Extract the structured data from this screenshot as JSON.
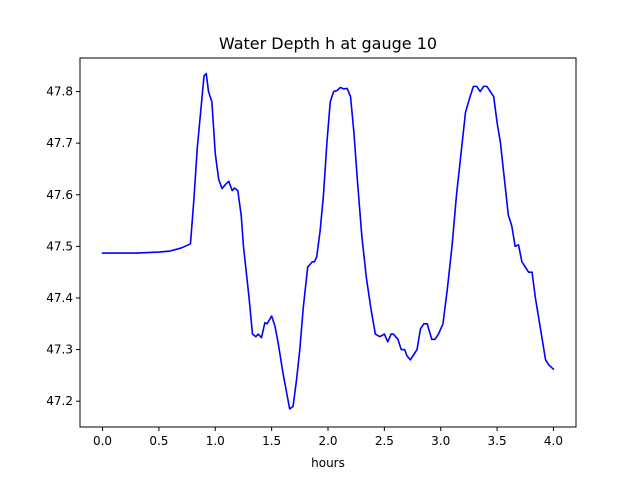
{
  "chart_data": {
    "type": "line",
    "title": "Water Depth h at gauge 10",
    "xlabel": "hours",
    "ylabel": "",
    "xlim": [
      -0.2,
      4.2
    ],
    "ylim": [
      47.15,
      47.865
    ],
    "x_ticks": [
      0.0,
      0.5,
      1.0,
      1.5,
      2.0,
      2.5,
      3.0,
      3.5,
      4.0
    ],
    "x_tick_labels": [
      "0.0",
      "0.5",
      "1.0",
      "1.5",
      "2.0",
      "2.5",
      "3.0",
      "3.5",
      "4.0"
    ],
    "y_ticks": [
      47.2,
      47.3,
      47.4,
      47.5,
      47.6,
      47.7,
      47.8
    ],
    "y_tick_labels": [
      "47.2",
      "47.3",
      "47.4",
      "47.5",
      "47.6",
      "47.7",
      "47.8"
    ],
    "grid": false,
    "series": [
      {
        "color": "#0000ff",
        "x": [
          0.0,
          0.3,
          0.5,
          0.6,
          0.7,
          0.78,
          0.81,
          0.84,
          0.87,
          0.9,
          0.92,
          0.94,
          0.97,
          1.0,
          1.03,
          1.06,
          1.09,
          1.12,
          1.15,
          1.17,
          1.2,
          1.23,
          1.25,
          1.27,
          1.3,
          1.33,
          1.36,
          1.38,
          1.41,
          1.44,
          1.46,
          1.5,
          1.53,
          1.56,
          1.6,
          1.63,
          1.66,
          1.69,
          1.72,
          1.75,
          1.78,
          1.82,
          1.86,
          1.88,
          1.9,
          1.93,
          1.96,
          1.99,
          2.02,
          2.05,
          2.08,
          2.11,
          2.14,
          2.17,
          2.2,
          2.23,
          2.26,
          2.3,
          2.34,
          2.38,
          2.42,
          2.46,
          2.5,
          2.53,
          2.56,
          2.58,
          2.6,
          2.62,
          2.65,
          2.68,
          2.7,
          2.73,
          2.76,
          2.79,
          2.82,
          2.85,
          2.88,
          2.92,
          2.95,
          2.98,
          3.02,
          3.06,
          3.1,
          3.14,
          3.18,
          3.22,
          3.26,
          3.29,
          3.32,
          3.35,
          3.38,
          3.41,
          3.44,
          3.47,
          3.5,
          3.53,
          3.56,
          3.6,
          3.63,
          3.66,
          3.69,
          3.72,
          3.75,
          3.78,
          3.81,
          3.84,
          3.87,
          3.9,
          3.93,
          3.96,
          4.0
        ],
        "y": [
          47.487,
          47.487,
          47.489,
          47.491,
          47.497,
          47.505,
          47.59,
          47.69,
          47.76,
          47.83,
          47.835,
          47.8,
          47.78,
          47.68,
          47.63,
          47.612,
          47.62,
          47.626,
          47.608,
          47.613,
          47.608,
          47.56,
          47.5,
          47.46,
          47.4,
          47.33,
          47.325,
          47.33,
          47.323,
          47.352,
          47.35,
          47.365,
          47.345,
          47.31,
          47.255,
          47.22,
          47.185,
          47.19,
          47.24,
          47.3,
          47.38,
          47.46,
          47.47,
          47.47,
          47.48,
          47.53,
          47.6,
          47.7,
          47.78,
          47.8,
          47.802,
          47.808,
          47.805,
          47.806,
          47.79,
          47.72,
          47.63,
          47.52,
          47.44,
          47.38,
          47.33,
          47.325,
          47.33,
          47.315,
          47.33,
          47.33,
          47.325,
          47.32,
          47.3,
          47.3,
          47.288,
          47.28,
          47.29,
          47.3,
          47.34,
          47.35,
          47.35,
          47.32,
          47.32,
          47.33,
          47.35,
          47.42,
          47.5,
          47.6,
          47.68,
          47.76,
          47.79,
          47.81,
          47.81,
          47.8,
          47.81,
          47.81,
          47.8,
          47.79,
          47.74,
          47.7,
          47.64,
          47.56,
          47.54,
          47.5,
          47.503,
          47.47,
          47.46,
          47.45,
          47.45,
          47.4,
          47.36,
          47.32,
          47.28,
          47.27,
          47.262
        ]
      }
    ]
  }
}
